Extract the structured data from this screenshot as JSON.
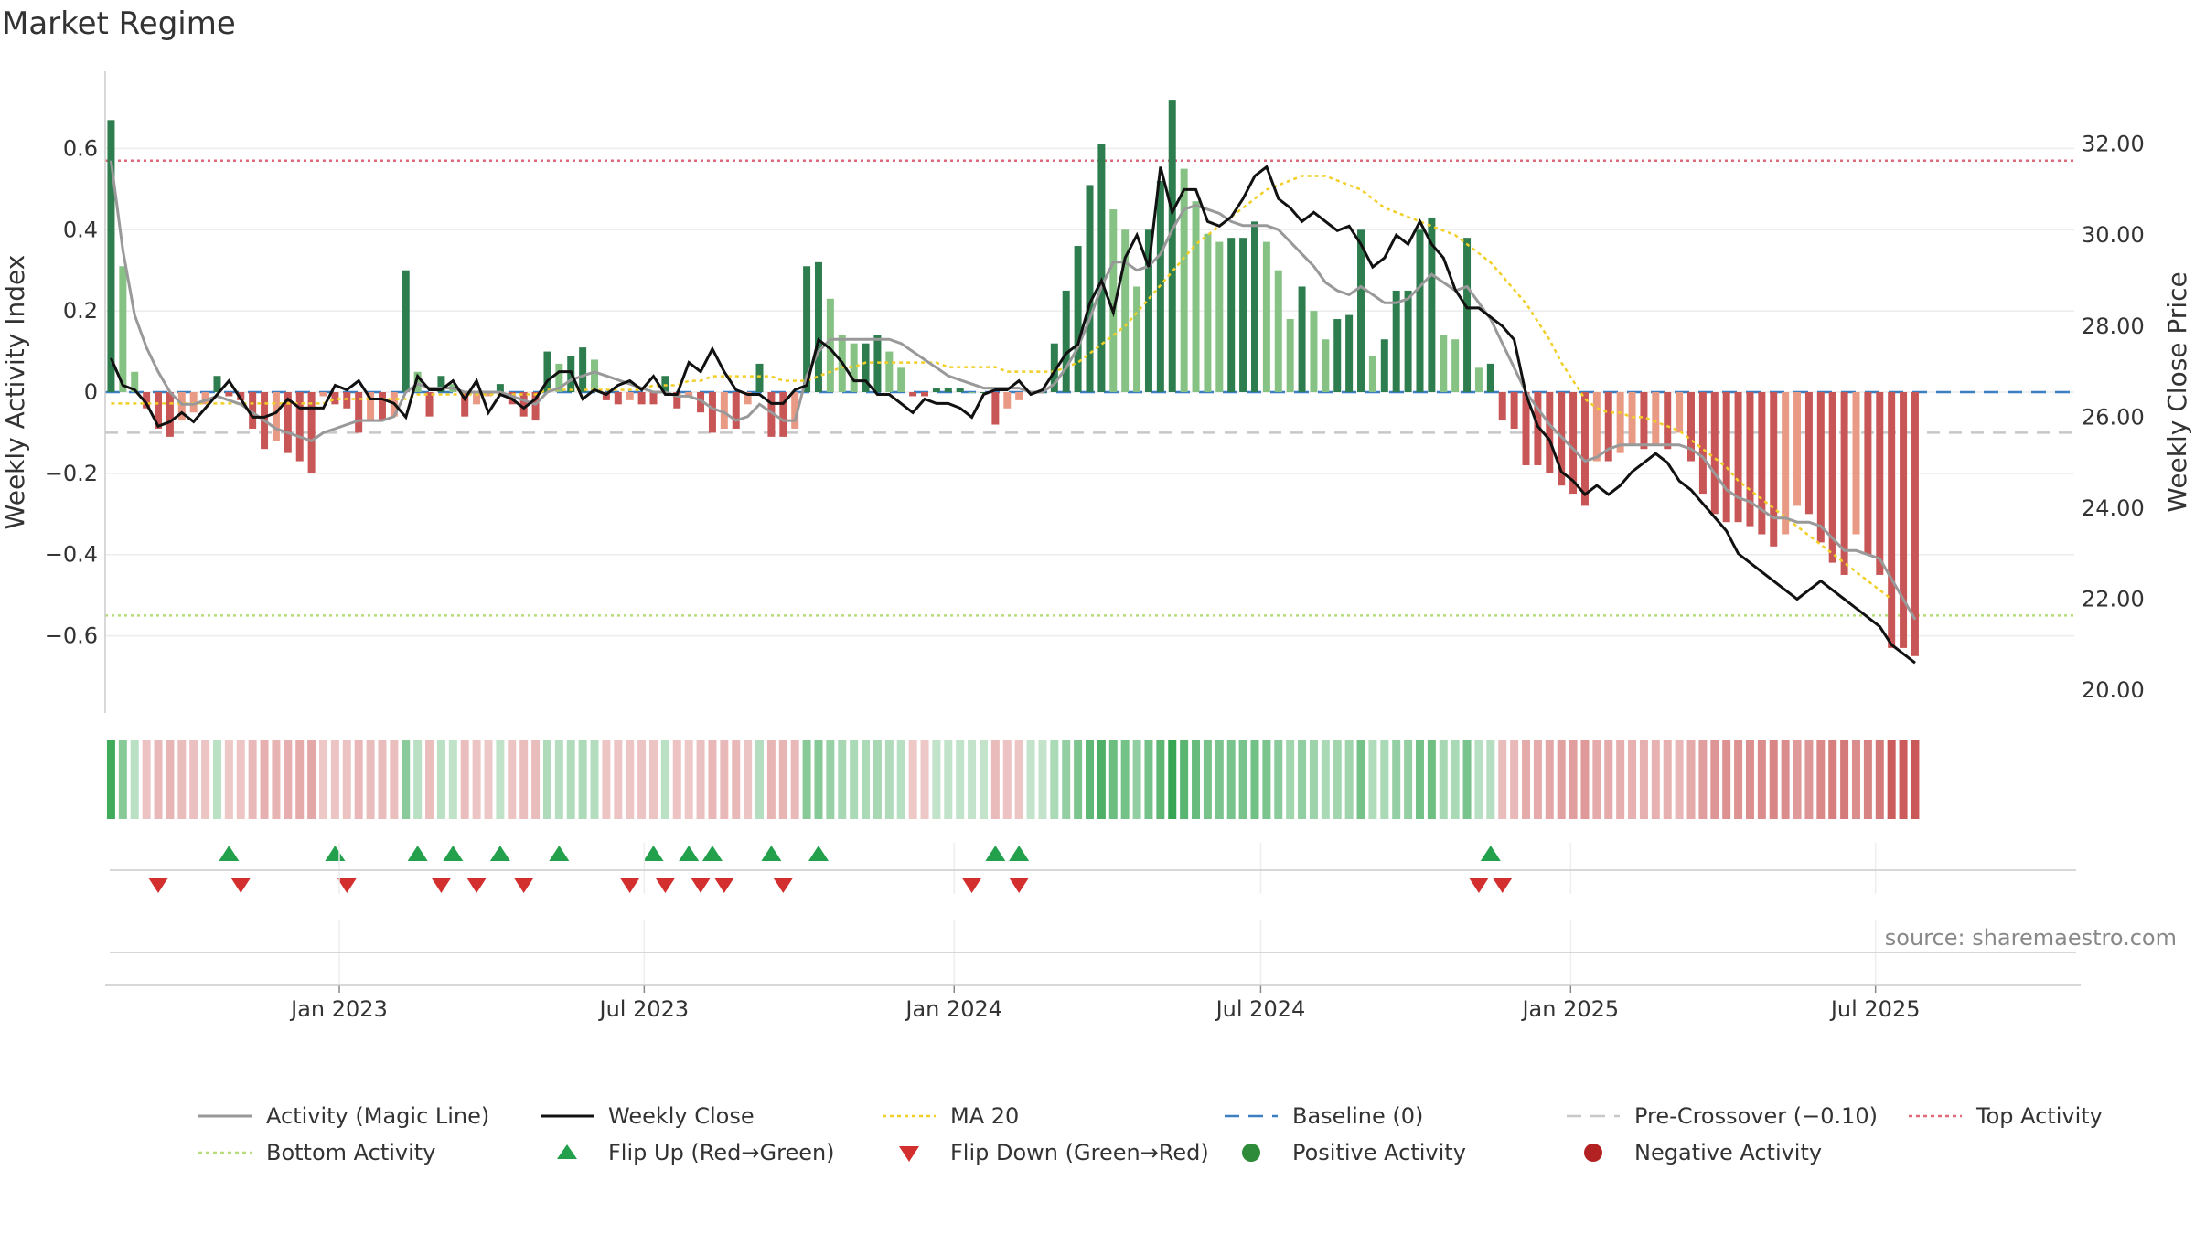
{
  "chart_data": {
    "type": "bar",
    "title": "Market Regime",
    "source": "source: sharemaestro.com",
    "left_axis": {
      "label": "Weekly Activity Index",
      "ylim": [
        -0.79,
        0.79
      ],
      "ticks": [
        0.6,
        0.4,
        0.2,
        0,
        -0.2,
        -0.4,
        -0.6
      ],
      "tick_labels": [
        "0.6",
        "0.4",
        "0.2",
        "0",
        "−0.2",
        "−0.4",
        "−0.6"
      ]
    },
    "right_axis": {
      "label": "Weekly Close Price",
      "ylim": [
        19.5,
        33.6
      ],
      "ticks": [
        32,
        30,
        28,
        26,
        24,
        22,
        20
      ],
      "tick_labels": [
        "32.00",
        "30.00",
        "28.00",
        "26.00",
        "24.00",
        "22.00",
        "20.00"
      ]
    },
    "x_axis": {
      "range": [
        "2022-08-15",
        "2025-10-27"
      ],
      "ticks": [
        "2023-01-01",
        "2023-07-01",
        "2024-01-01",
        "2024-07-01",
        "2025-01-01",
        "2025-07-01"
      ],
      "tick_labels": [
        "Jan 2023",
        "Jul 2023",
        "Jan 2024",
        "Jul 2024",
        "Jan 2025",
        "Jul 2025"
      ]
    },
    "grid": true,
    "reference_lines": {
      "top_activity": 0.57,
      "bottom_activity": -0.55,
      "pre_crossover": -0.1,
      "baseline": 0
    },
    "series": [
      {
        "name": "Weekly Activity",
        "values": [
          0.67,
          0.31,
          0.05,
          -0.04,
          -0.09,
          -0.11,
          -0.07,
          -0.05,
          -0.03,
          0.04,
          -0.01,
          -0.02,
          -0.09,
          -0.14,
          -0.12,
          -0.15,
          -0.17,
          -0.2,
          -0.01,
          -0.03,
          -0.04,
          -0.1,
          -0.07,
          -0.07,
          -0.06,
          0.3,
          0.05,
          -0.06,
          0.04,
          0.02,
          -0.06,
          -0.03,
          -0.01,
          0.02,
          -0.03,
          -0.06,
          -0.07,
          0.1,
          0.07,
          0.09,
          0.11,
          0.08,
          -0.02,
          -0.03,
          -0.02,
          -0.03,
          -0.03,
          0.04,
          -0.04,
          -0.01,
          -0.05,
          -0.1,
          -0.09,
          -0.09,
          -0.03,
          0.07,
          -0.11,
          -0.11,
          -0.09,
          0.31,
          0.32,
          0.23,
          0.14,
          0.12,
          0.12,
          0.14,
          0.1,
          0.06,
          -0.01,
          -0.01,
          0.01,
          0.01,
          0.01,
          0.0,
          0.0,
          -0.08,
          -0.04,
          -0.02,
          0.0,
          0.0,
          0.12,
          0.25,
          0.36,
          0.51,
          0.61,
          0.45,
          0.4,
          0.26,
          0.4,
          0.52,
          0.72,
          0.55,
          0.47,
          0.39,
          0.37,
          0.38,
          0.38,
          0.42,
          0.37,
          0.3,
          0.18,
          0.26,
          0.2,
          0.13,
          0.18,
          0.19,
          0.4,
          0.09,
          0.13,
          0.25,
          0.25,
          0.4,
          0.43,
          0.14,
          0.13,
          0.38,
          0.06,
          0.07,
          -0.07,
          -0.09,
          -0.18,
          -0.18,
          -0.2,
          -0.23,
          -0.25,
          -0.28,
          -0.17,
          -0.17,
          -0.15,
          -0.13,
          -0.14,
          -0.13,
          -0.14,
          -0.1,
          -0.17,
          -0.25,
          -0.3,
          -0.32,
          -0.32,
          -0.33,
          -0.35,
          -0.38,
          -0.35,
          -0.28,
          -0.3,
          -0.37,
          -0.42,
          -0.45,
          -0.35,
          -0.4,
          -0.45,
          -0.63,
          -0.63,
          -0.65
        ]
      },
      {
        "name": "Activity (Magic Line)",
        "values": [
          0.57,
          0.35,
          0.19,
          0.11,
          0.05,
          0.0,
          -0.03,
          -0.03,
          -0.02,
          -0.01,
          -0.02,
          -0.03,
          -0.05,
          -0.07,
          -0.09,
          -0.1,
          -0.11,
          -0.12,
          -0.1,
          -0.09,
          -0.08,
          -0.07,
          -0.07,
          -0.07,
          -0.06,
          0.0,
          0.02,
          0.01,
          0.01,
          0.01,
          0.0,
          0.0,
          0.0,
          0.0,
          -0.01,
          -0.02,
          -0.03,
          0.0,
          0.01,
          0.03,
          0.04,
          0.05,
          0.04,
          0.03,
          0.02,
          0.01,
          0.0,
          0.0,
          -0.01,
          -0.01,
          -0.02,
          -0.04,
          -0.05,
          -0.07,
          -0.06,
          -0.03,
          -0.05,
          -0.07,
          -0.07,
          0.04,
          0.1,
          0.13,
          0.13,
          0.13,
          0.13,
          0.13,
          0.13,
          0.12,
          0.1,
          0.08,
          0.06,
          0.04,
          0.03,
          0.02,
          0.01,
          0.01,
          0.01,
          0.01,
          0.0,
          0.0,
          0.02,
          0.06,
          0.11,
          0.18,
          0.26,
          0.32,
          0.32,
          0.3,
          0.31,
          0.34,
          0.4,
          0.45,
          0.46,
          0.45,
          0.44,
          0.42,
          0.41,
          0.41,
          0.41,
          0.4,
          0.37,
          0.34,
          0.31,
          0.27,
          0.25,
          0.24,
          0.26,
          0.24,
          0.22,
          0.22,
          0.23,
          0.26,
          0.29,
          0.27,
          0.25,
          0.26,
          0.22,
          0.18,
          0.12,
          0.06,
          0.0,
          -0.04,
          -0.08,
          -0.11,
          -0.14,
          -0.17,
          -0.16,
          -0.14,
          -0.13,
          -0.13,
          -0.13,
          -0.13,
          -0.13,
          -0.13,
          -0.14,
          -0.16,
          -0.2,
          -0.24,
          -0.26,
          -0.27,
          -0.29,
          -0.31,
          -0.31,
          -0.32,
          -0.32,
          -0.33,
          -0.36,
          -0.39,
          -0.39,
          -0.4,
          -0.41,
          -0.46,
          -0.51,
          -0.56
        ]
      },
      {
        "name": "Weekly Close",
        "values": [
          27.3,
          26.7,
          26.6,
          26.3,
          25.8,
          25.9,
          26.1,
          25.9,
          26.2,
          26.5,
          26.8,
          26.4,
          26.0,
          26.0,
          26.1,
          26.4,
          26.2,
          26.2,
          26.2,
          26.7,
          26.6,
          26.8,
          26.4,
          26.4,
          26.3,
          26.0,
          26.9,
          26.6,
          26.6,
          26.8,
          26.4,
          26.8,
          26.1,
          26.5,
          26.4,
          26.2,
          26.4,
          26.8,
          27.0,
          27.0,
          26.4,
          26.6,
          26.5,
          26.7,
          26.8,
          26.6,
          26.9,
          26.5,
          26.5,
          27.2,
          27.0,
          27.5,
          27.0,
          26.6,
          26.5,
          26.5,
          26.3,
          26.3,
          26.6,
          26.7,
          27.7,
          27.5,
          27.2,
          26.8,
          26.8,
          26.5,
          26.5,
          26.3,
          26.1,
          26.4,
          26.3,
          26.3,
          26.2,
          26.0,
          26.5,
          26.6,
          26.6,
          26.8,
          26.5,
          26.6,
          27.0,
          27.4,
          27.6,
          28.5,
          29.0,
          28.3,
          29.5,
          30.0,
          29.3,
          31.5,
          30.5,
          31.0,
          31.0,
          30.3,
          30.2,
          30.4,
          30.8,
          31.3,
          31.5,
          30.8,
          30.6,
          30.3,
          30.5,
          30.3,
          30.1,
          30.2,
          29.8,
          29.3,
          29.5,
          30.0,
          29.8,
          30.3,
          29.8,
          29.5,
          28.8,
          28.4,
          28.4,
          28.2,
          28.0,
          27.7,
          26.5,
          25.8,
          25.5,
          24.8,
          24.6,
          24.3,
          24.5,
          24.3,
          24.5,
          24.8,
          25.0,
          25.2,
          25.0,
          24.6,
          24.4,
          24.1,
          23.8,
          23.5,
          23.0,
          22.8,
          22.6,
          22.4,
          22.2,
          22.0,
          22.2,
          22.4,
          22.2,
          22.0,
          21.8,
          21.6,
          21.4,
          21.0,
          20.8,
          20.6
        ]
      },
      {
        "name": "MA 20",
        "values": [
          26.3,
          26.3,
          26.3,
          26.3,
          26.3,
          26.3,
          26.3,
          26.3,
          26.3,
          26.3,
          26.3,
          26.3,
          26.3,
          26.3,
          26.3,
          26.3,
          26.3,
          26.3,
          26.3,
          26.4,
          26.4,
          26.4,
          26.4,
          26.4,
          26.4,
          26.4,
          26.5,
          26.5,
          26.5,
          26.5,
          26.5,
          26.5,
          26.5,
          26.5,
          26.5,
          26.5,
          26.5,
          26.6,
          26.6,
          26.6,
          26.6,
          26.6,
          26.6,
          26.6,
          26.6,
          26.6,
          26.7,
          26.7,
          26.7,
          26.8,
          26.8,
          26.9,
          26.9,
          26.9,
          26.9,
          26.9,
          26.9,
          26.8,
          26.8,
          26.8,
          26.9,
          27.0,
          27.1,
          27.1,
          27.2,
          27.2,
          27.2,
          27.2,
          27.2,
          27.2,
          27.2,
          27.1,
          27.1,
          27.1,
          27.1,
          27.1,
          27.0,
          27.0,
          27.0,
          27.0,
          27.0,
          27.1,
          27.2,
          27.4,
          27.6,
          27.8,
          28.0,
          28.3,
          28.6,
          28.9,
          29.2,
          29.5,
          29.8,
          30.0,
          30.2,
          30.4,
          30.6,
          30.8,
          31.0,
          31.1,
          31.2,
          31.3,
          31.3,
          31.3,
          31.2,
          31.1,
          31.0,
          30.8,
          30.6,
          30.5,
          30.4,
          30.3,
          30.2,
          30.1,
          30.0,
          29.8,
          29.6,
          29.4,
          29.1,
          28.8,
          28.5,
          28.1,
          27.7,
          27.2,
          26.8,
          26.4,
          26.2,
          26.1,
          26.1,
          26.0,
          26.0,
          25.9,
          25.8,
          25.7,
          25.5,
          25.3,
          25.1,
          24.9,
          24.6,
          24.4,
          24.2,
          24.0,
          23.8,
          23.6,
          23.4,
          23.2,
          23.0,
          22.8,
          22.6,
          22.4,
          22.2,
          22.0
        ]
      }
    ],
    "flip_up_weeks": [
      10,
      19,
      26,
      29,
      33,
      38,
      46,
      49,
      51,
      56,
      60,
      75,
      77,
      117
    ],
    "flip_down_weeks": [
      4,
      11,
      20,
      28,
      31,
      35,
      44,
      47,
      50,
      52,
      57,
      73,
      77,
      116,
      118
    ]
  },
  "colors": {
    "green_dark": "#2e7d4f",
    "green_light": "#85c283",
    "red_dark": "#c95656",
    "red_light": "#e99a85",
    "magic_line": "#999999",
    "weekly_close": "#111111",
    "ma20": "#f1cf28",
    "baseline": "#3a7fc1",
    "pre_crossover": "#c8c8c8",
    "top_activity": "#e06a7a",
    "bottom_activity": "#b6dd7a",
    "flip_up": "#22a04b",
    "flip_down": "#d32f2f"
  },
  "legend": [
    {
      "label": "Activity (Magic Line)",
      "icon": "line",
      "color": "#999999"
    },
    {
      "label": "Weekly Close",
      "icon": "line",
      "color": "#111111"
    },
    {
      "label": "MA 20",
      "icon": "dotted-line",
      "color": "#f1cf28"
    },
    {
      "label": "Baseline (0)",
      "icon": "dashed-line",
      "color": "#3a7fc1"
    },
    {
      "label": "Pre-Crossover (−0.10)",
      "icon": "dashed-line",
      "color": "#c8c8c8"
    },
    {
      "label": "Top Activity",
      "icon": "dotted-line",
      "color": "#e06a7a"
    },
    {
      "label": "Bottom Activity",
      "icon": "dotted-line",
      "color": "#b6dd7a"
    },
    {
      "label": "Flip Up (Red→Green)",
      "icon": "triangle-up-icon",
      "color": "#22a04b"
    },
    {
      "label": "Flip Down (Green→Red)",
      "icon": "triangle-down-icon",
      "color": "#d32f2f"
    },
    {
      "label": "Positive Activity",
      "icon": "circle-icon",
      "color": "#2e8b3a"
    },
    {
      "label": "Negative Activity",
      "icon": "circle-icon",
      "color": "#b22222"
    }
  ]
}
